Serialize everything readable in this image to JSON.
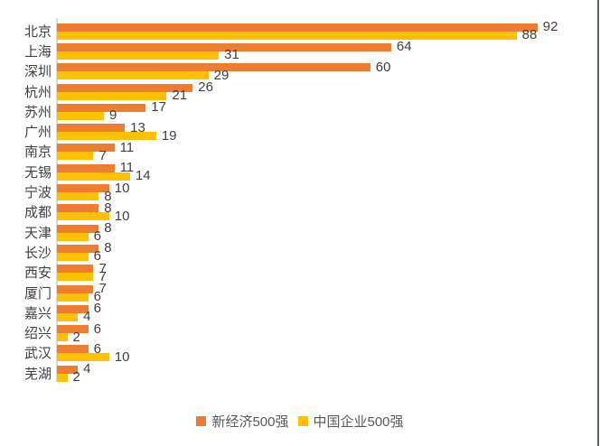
{
  "chart_data": {
    "type": "bar",
    "orientation": "horizontal",
    "title": "",
    "xlabel": "",
    "ylabel": "",
    "xlim": [
      0,
      100
    ],
    "grid": false,
    "legend_position": "bottom",
    "value_labels": "outside-end",
    "categories": [
      "北京",
      "上海",
      "深圳",
      "杭州",
      "苏州",
      "广州",
      "南京",
      "无锡",
      "宁波",
      "成都",
      "天津",
      "长沙",
      "西安",
      "厦门",
      "嘉兴",
      "绍兴",
      "武汉",
      "芜湖"
    ],
    "series": [
      {
        "name": "新经济500强",
        "color": "#ED7D31",
        "values": [
          92,
          64,
          60,
          26,
          17,
          13,
          11,
          11,
          10,
          8,
          8,
          8,
          7,
          7,
          6,
          6,
          6,
          4
        ]
      },
      {
        "name": "中国企业500强",
        "color": "#FFC000",
        "values": [
          88,
          31,
          29,
          21,
          9,
          19,
          7,
          14,
          8,
          10,
          6,
          6,
          7,
          6,
          4,
          2,
          10,
          2
        ]
      }
    ]
  },
  "legend": {
    "items": [
      {
        "label": "新经济500强",
        "color": "#ED7D31"
      },
      {
        "label": "中国企业500强",
        "color": "#FFC000"
      }
    ]
  },
  "colors": {
    "series_orange": "#ED7D31",
    "series_yellow": "#FFC000",
    "label_text": "#404040",
    "legend_text": "#595959",
    "axis_line": "#D9D9D9",
    "frame_right": "#4F6B55",
    "background": "#FFFFFF"
  }
}
